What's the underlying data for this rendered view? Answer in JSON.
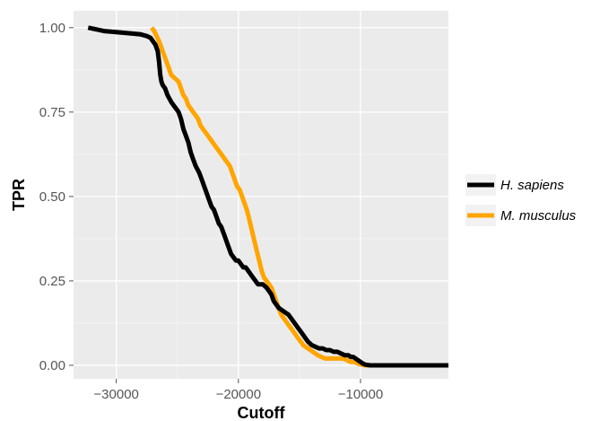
{
  "chart_data": {
    "type": "line",
    "xlabel": "Cutoff",
    "ylabel": "TPR",
    "xlim": [
      -33500,
      -2800
    ],
    "ylim": [
      -0.04,
      1.05
    ],
    "x_ticks": [
      -30000,
      -20000,
      -10000
    ],
    "x_tick_labels": [
      "−30000",
      "−20000",
      "−10000"
    ],
    "y_ticks": [
      0.0,
      0.25,
      0.5,
      0.75,
      1.0
    ],
    "y_tick_labels": [
      "0.00",
      "0.25",
      "0.50",
      "0.75",
      "1.00"
    ],
    "grid": true,
    "background": "#EBEBEB",
    "legend_position": "right",
    "series": [
      {
        "name": "H. sapiens",
        "color": "#000000",
        "x": [
          -32300,
          -31000,
          -29500,
          -28000,
          -27500,
          -27200,
          -27000,
          -26800,
          -26600,
          -26500,
          -26400,
          -26300,
          -26200,
          -26000,
          -25800,
          -25500,
          -25300,
          -25100,
          -24900,
          -24700,
          -24500,
          -24300,
          -24100,
          -23900,
          -23700,
          -23500,
          -23200,
          -23000,
          -22800,
          -22600,
          -22400,
          -22200,
          -22000,
          -21800,
          -21600,
          -21400,
          -21200,
          -21000,
          -20800,
          -20700,
          -20600,
          -20400,
          -20200,
          -20000,
          -19800,
          -19600,
          -19400,
          -19200,
          -19000,
          -18800,
          -18600,
          -18400,
          -18200,
          -18000,
          -17700,
          -17500,
          -17300,
          -17100,
          -16900,
          -16700,
          -16500,
          -16300,
          -16100,
          -15900,
          -15700,
          -15500,
          -15300,
          -15100,
          -14900,
          -14700,
          -14500,
          -14300,
          -14000,
          -13700,
          -13400,
          -13100,
          -12800,
          -12500,
          -12200,
          -11900,
          -11600,
          -11300,
          -11000,
          -10800,
          -10600,
          -10400,
          -10200,
          -10000,
          -9800,
          -9600,
          -9400,
          -9200,
          -9000,
          -5000,
          -2800
        ],
        "y": [
          1.0,
          0.99,
          0.985,
          0.98,
          0.975,
          0.97,
          0.96,
          0.95,
          0.93,
          0.9,
          0.86,
          0.84,
          0.83,
          0.82,
          0.8,
          0.78,
          0.77,
          0.76,
          0.75,
          0.73,
          0.7,
          0.68,
          0.66,
          0.63,
          0.61,
          0.59,
          0.57,
          0.55,
          0.53,
          0.51,
          0.49,
          0.47,
          0.46,
          0.44,
          0.42,
          0.41,
          0.39,
          0.37,
          0.35,
          0.34,
          0.33,
          0.32,
          0.31,
          0.31,
          0.3,
          0.29,
          0.29,
          0.28,
          0.27,
          0.26,
          0.25,
          0.24,
          0.24,
          0.24,
          0.23,
          0.22,
          0.21,
          0.19,
          0.18,
          0.17,
          0.165,
          0.16,
          0.155,
          0.15,
          0.14,
          0.13,
          0.12,
          0.11,
          0.1,
          0.09,
          0.08,
          0.07,
          0.06,
          0.055,
          0.05,
          0.05,
          0.045,
          0.045,
          0.04,
          0.04,
          0.035,
          0.03,
          0.03,
          0.025,
          0.025,
          0.02,
          0.015,
          0.01,
          0.005,
          0.002,
          0.001,
          0.0,
          0.0,
          0.0,
          0.0
        ]
      },
      {
        "name": "M. musculus",
        "color": "#FFA500",
        "x": [
          -27100,
          -26900,
          -26700,
          -26500,
          -26300,
          -26100,
          -25900,
          -25700,
          -25500,
          -25200,
          -24900,
          -24700,
          -24500,
          -24300,
          -24100,
          -23900,
          -23700,
          -23500,
          -23300,
          -23100,
          -22900,
          -22700,
          -22500,
          -22300,
          -22100,
          -21900,
          -21700,
          -21500,
          -21300,
          -21100,
          -20900,
          -20700,
          -20500,
          -20300,
          -20100,
          -19900,
          -19700,
          -19500,
          -19300,
          -19100,
          -18900,
          -18700,
          -18500,
          -18300,
          -18100,
          -17900,
          -17700,
          -17500,
          -17300,
          -17100,
          -16900,
          -16700,
          -16500,
          -16300,
          -16100,
          -15900,
          -15700,
          -15500,
          -15300,
          -15100,
          -14900,
          -14700,
          -14500,
          -14300,
          -14100,
          -13900,
          -13700,
          -13500,
          -13200,
          -12900,
          -12600,
          -12300,
          -12000,
          -11700,
          -11400,
          -11100,
          -10800,
          -10500,
          -10200,
          -9900,
          -9600,
          -9300,
          -9100,
          -5000,
          -2800
        ],
        "y": [
          1.0,
          0.99,
          0.975,
          0.96,
          0.94,
          0.92,
          0.9,
          0.88,
          0.86,
          0.85,
          0.84,
          0.82,
          0.8,
          0.79,
          0.77,
          0.76,
          0.75,
          0.74,
          0.73,
          0.71,
          0.7,
          0.69,
          0.68,
          0.67,
          0.66,
          0.65,
          0.64,
          0.63,
          0.62,
          0.61,
          0.6,
          0.59,
          0.57,
          0.55,
          0.53,
          0.52,
          0.5,
          0.48,
          0.46,
          0.43,
          0.4,
          0.37,
          0.34,
          0.31,
          0.28,
          0.26,
          0.25,
          0.24,
          0.23,
          0.21,
          0.19,
          0.17,
          0.15,
          0.14,
          0.13,
          0.12,
          0.11,
          0.1,
          0.09,
          0.08,
          0.07,
          0.06,
          0.055,
          0.05,
          0.045,
          0.04,
          0.035,
          0.03,
          0.025,
          0.02,
          0.02,
          0.02,
          0.02,
          0.02,
          0.02,
          0.015,
          0.01,
          0.01,
          0.005,
          0.002,
          0.0,
          0.0,
          0.0,
          0.0,
          0.0
        ]
      }
    ]
  }
}
